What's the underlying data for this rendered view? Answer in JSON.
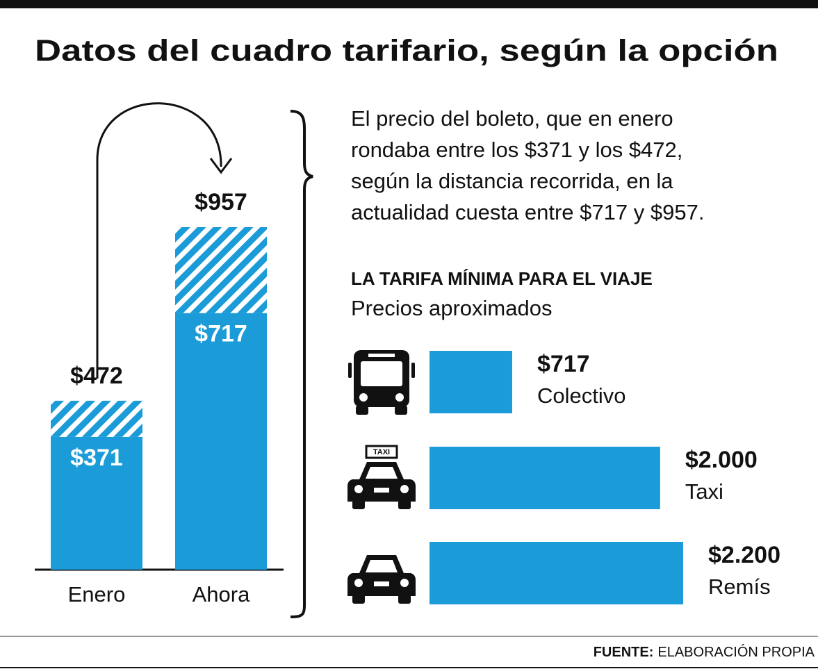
{
  "title": "Datos del cuadro tarifario, según la opción",
  "description": [
    "El precio del boleto, que en enero",
    "rondaba entre los $371 y los $472,",
    "según la distancia recorrida, en la",
    "actualidad cuesta entre $717 y $957."
  ],
  "icon_labels": {
    "taxi": "TAXI"
  },
  "source": {
    "label": "FUENTE:",
    "text": "ELABORACIÓN PROPIA"
  },
  "chart_data": [
    {
      "type": "range-bar",
      "categories": [
        "Enero",
        "Ahora"
      ],
      "series": [
        {
          "color": "#1b9bd7",
          "values": [
            371,
            717
          ],
          "value_labels": [
            "$371",
            "$717"
          ]
        },
        {
          "color": "#1b9bd7",
          "fill": "hatched",
          "values": [
            472,
            957
          ],
          "value_labels": [
            "$472",
            "$957"
          ]
        }
      ]
    },
    {
      "type": "hbar",
      "title": "LA TARIFA MÍNIMA PARA EL VIAJE",
      "subtitle": "Precios aproximados",
      "categories": [
        "Colectivo",
        "Taxi",
        "Remís"
      ],
      "values": [
        717,
        2000,
        2200
      ],
      "value_labels": [
        "$717",
        "$2.000",
        "$2.200"
      ],
      "color": "#1b9bd7"
    }
  ]
}
